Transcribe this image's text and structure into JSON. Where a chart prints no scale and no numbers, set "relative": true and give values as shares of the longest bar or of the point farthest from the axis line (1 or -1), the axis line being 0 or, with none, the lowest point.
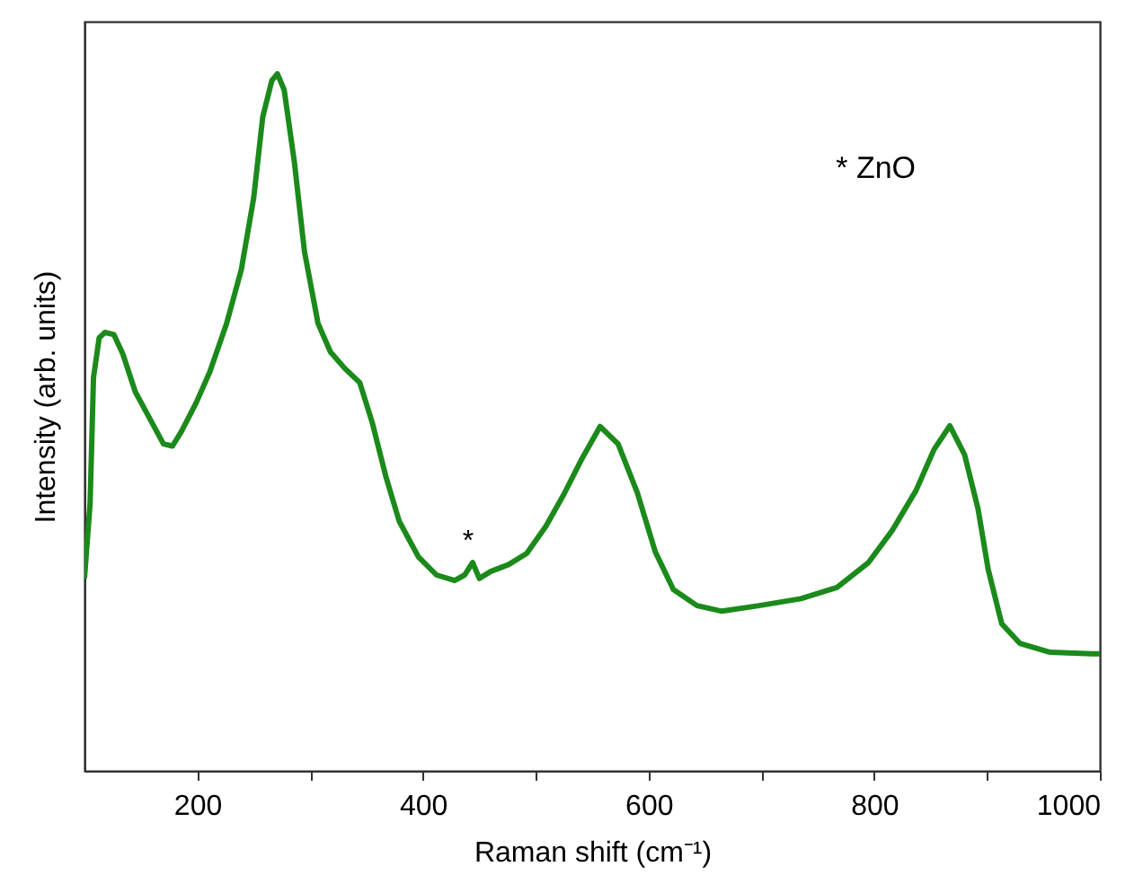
{
  "chart_data": {
    "type": "line",
    "relative": true,
    "xlabel": "Raman shift (cm⁻¹)",
    "ylabel": "Intensity (arb. units)",
    "xlim": [
      100,
      1000
    ],
    "xticks": [
      200,
      {
        "value": 300,
        "label": null
      },
      400,
      {
        "value": 500,
        "label": null
      },
      600,
      {
        "value": 700,
        "label": null
      },
      800,
      {
        "value": 900,
        "label": null
      },
      1000
    ],
    "x": [
      100,
      105,
      108,
      113,
      118,
      126,
      134,
      145,
      157,
      170,
      178,
      186,
      199,
      211,
      226,
      239,
      250,
      258,
      266,
      271,
      277,
      286,
      295,
      307,
      318,
      331,
      344,
      355,
      367,
      379,
      396,
      412,
      428,
      437,
      444,
      450,
      460,
      476,
      492,
      509,
      525,
      541,
      557,
      573,
      590,
      606,
      622,
      643,
      665,
      698,
      735,
      767,
      795,
      816,
      837,
      853,
      867,
      880,
      892,
      901,
      913,
      929,
      956,
      993,
      1000
    ],
    "series": [
      {
        "color": "#1b8a1b",
        "values": [
          0.276,
          0.384,
          0.564,
          0.621,
          0.629,
          0.626,
          0.598,
          0.544,
          0.508,
          0.469,
          0.466,
          0.487,
          0.528,
          0.572,
          0.642,
          0.719,
          0.822,
          0.938,
          0.99,
          1.0,
          0.977,
          0.874,
          0.745,
          0.642,
          0.601,
          0.577,
          0.557,
          0.5,
          0.423,
          0.358,
          0.307,
          0.281,
          0.273,
          0.281,
          0.299,
          0.276,
          0.286,
          0.296,
          0.312,
          0.351,
          0.397,
          0.448,
          0.494,
          0.469,
          0.399,
          0.314,
          0.26,
          0.237,
          0.229,
          0.237,
          0.247,
          0.263,
          0.299,
          0.345,
          0.402,
          0.461,
          0.495,
          0.454,
          0.376,
          0.289,
          0.211,
          0.183,
          0.17,
          0.168,
          0.168
        ]
      }
    ],
    "annotations": [
      {
        "text": "*",
        "x": 440,
        "y": 0.299
      },
      "* ZnO"
    ]
  }
}
